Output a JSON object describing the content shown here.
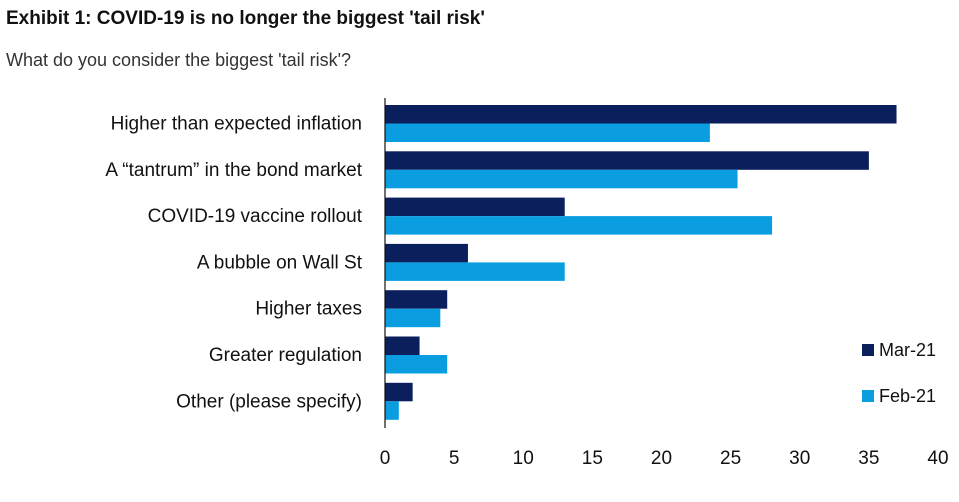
{
  "header": {
    "title": "Exhibit 1: COVID-19 is no longer the biggest 'tail risk'",
    "subtitle": "What do you consider the biggest 'tail risk'?"
  },
  "colors": {
    "mar": "#0b1f5c",
    "feb": "#0a9ee0"
  },
  "chart_data": {
    "type": "bar",
    "orientation": "horizontal",
    "title": "Exhibit 1: COVID-19 is no longer the biggest 'tail risk'",
    "subtitle": "What do you consider the biggest 'tail risk'?",
    "categories": [
      "Higher than expected inflation",
      "A “tantrum” in the bond market",
      "COVID-19 vaccine rollout",
      "A bubble on Wall St",
      "Higher taxes",
      "Greater regulation",
      "Other (please specify)"
    ],
    "series": [
      {
        "name": "Mar-21",
        "values": [
          37,
          35,
          13,
          6,
          4.5,
          2.5,
          2
        ]
      },
      {
        "name": "Feb-21",
        "values": [
          23.5,
          25.5,
          28,
          13,
          4,
          4.5,
          1
        ]
      }
    ],
    "xlim": [
      0,
      40
    ],
    "xticks": [
      0,
      5,
      10,
      15,
      20,
      25,
      30,
      35,
      40
    ],
    "xlabel": "",
    "ylabel": "",
    "legend_position": "bottom-right"
  }
}
